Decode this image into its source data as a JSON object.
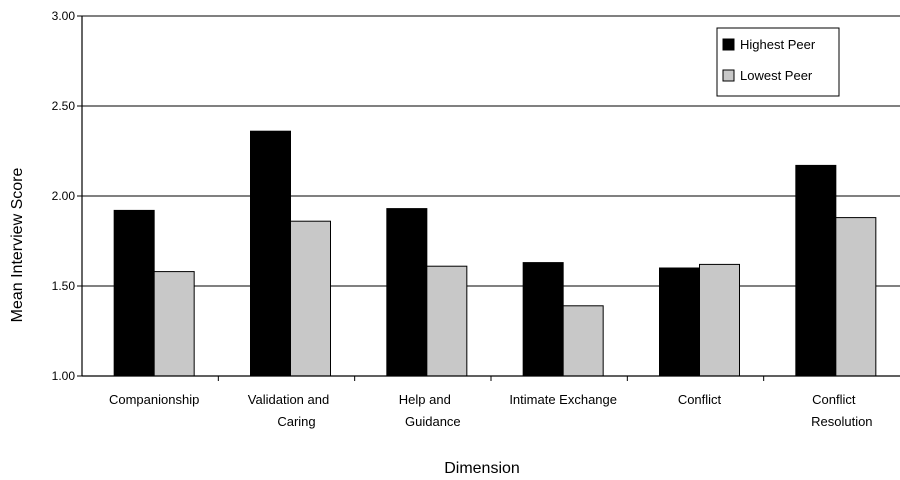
{
  "chart_data": {
    "type": "bar",
    "title": "",
    "xlabel": "Dimension",
    "ylabel": "Mean Interview Score",
    "ylim": [
      1.0,
      3.0
    ],
    "yticks": [
      "1.00",
      "1.50",
      "2.00",
      "2.50",
      "3.00"
    ],
    "grid": true,
    "legend_position": "top-right",
    "categories": [
      [
        "Companionship"
      ],
      [
        "Validation and",
        "Caring"
      ],
      [
        "Help and",
        "Guidance"
      ],
      [
        "Intimate Exchange"
      ],
      [
        "Conflict"
      ],
      [
        "Conflict",
        "Resolution"
      ]
    ],
    "series": [
      {
        "name": "Highest Peer",
        "color": "#000000",
        "values": [
          1.92,
          2.36,
          1.93,
          1.63,
          1.6,
          2.17
        ]
      },
      {
        "name": "Lowest Peer",
        "color": "#c8c8c8",
        "values": [
          1.58,
          1.86,
          1.61,
          1.39,
          1.62,
          1.88
        ]
      }
    ]
  }
}
